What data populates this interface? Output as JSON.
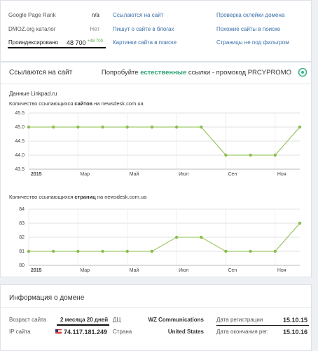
{
  "metrics": [
    {
      "label": "Google Page Rank",
      "value": "n/a"
    },
    {
      "label": "DMOZ.org каталог",
      "value": "Нет"
    },
    {
      "label": "Проиндексировано",
      "value": "48 700",
      "change": "+48 700"
    }
  ],
  "links": [
    [
      "Ссылаются на сайт",
      "Пишут о сайте в блогах",
      "Картинки сайта в поиске"
    ],
    [
      "Проверка склейки домена",
      "Похожие сайты в поиске",
      "Страницы не под фильтром"
    ]
  ],
  "backlinks": {
    "title": "Ссылаются на сайт",
    "promo": [
      "Попробуйте",
      "естественные",
      "ссылки - промокод PRCYPROMO"
    ],
    "source": "Данные Linkpad.ru",
    "charts": [
      {
        "type": "line",
        "title": [
          "Количество ссылающихся",
          "сайтов",
          "на newsdesk.com.ua"
        ],
        "categories": [
          "2015",
          null,
          "Мар",
          null,
          "Май",
          null,
          "Июл",
          null,
          "Сен",
          null,
          "Ноя",
          null
        ],
        "values": [
          45,
          45,
          45,
          45,
          45,
          45,
          45,
          45,
          44,
          44,
          44,
          45
        ],
        "color": "#8bbd4b",
        "ylim": [
          43.5,
          45.5
        ],
        "yticks": [
          43.5,
          {
            "value": 44,
            "label": "44.0"
          },
          44.5,
          {
            "value": 45,
            "label": "45.0"
          },
          45.5
        ],
        "grid": true
      },
      {
        "type": "line",
        "title": [
          "Количество ссылающихся",
          "страниц",
          "на newsdesk.com.ua"
        ],
        "categories": [
          "2015",
          null,
          "Мар",
          null,
          "Май",
          null,
          "Июл",
          null,
          "Сен",
          null,
          "Ноя",
          null
        ],
        "values": [
          81,
          81,
          81,
          81,
          81,
          81,
          82,
          82,
          81,
          81,
          81,
          83
        ],
        "color": "#8bbd4b",
        "ylim": [
          80,
          84
        ],
        "yticks": [
          80,
          81,
          82,
          83,
          84
        ],
        "grid": true
      }
    ]
  },
  "domain_info": {
    "title": "Информация о домене",
    "rows": [
      [
        {
          "label": "Возраст сайта",
          "value": "2 месяца 20 дней"
        },
        {
          "label": "ДЦ",
          "value": "WZ Communications"
        },
        {
          "label": "Дата регистрации",
          "value": "15.10.15"
        }
      ],
      [
        {
          "label": "IP сайта",
          "value": "74.117.181.249"
        },
        {
          "label": "Страна",
          "value": "United States"
        },
        {
          "label": "Дата окончания рег.",
          "value": "15.10.16"
        }
      ]
    ]
  }
}
